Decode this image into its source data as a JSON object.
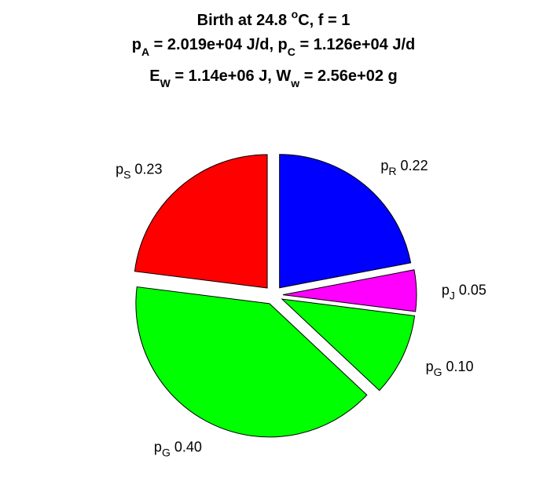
{
  "chart_data": {
    "type": "pie",
    "title": {
      "line1": {
        "t1": "Birth at 24.8 ",
        "sup": "o",
        "t2": "C, f = 1"
      },
      "line2": {
        "a1": "p",
        "a_sub": "A",
        "a2": " = 2.019e+04 J/d, p",
        "c_sub": "C",
        "c2": " = 1.126e+04 J/d"
      },
      "line3": {
        "e1": "E",
        "e_sub": "W",
        "e2": " = 1.14e+06 J, W",
        "w_sub": "w",
        "w2": " = 2.56e+02 g"
      }
    },
    "slices": [
      {
        "base": "p",
        "sub": "R",
        "value": "0.22",
        "color": "#0000ff"
      },
      {
        "base": "p",
        "sub": "J",
        "value": "0.05",
        "color": "#ff00ff"
      },
      {
        "base": "p",
        "sub": "G",
        "value": "0.10",
        "color": "#00ff00"
      },
      {
        "base": "p",
        "sub": "G",
        "value": "0.40",
        "color": "#00ff00"
      },
      {
        "base": "p",
        "sub": "S",
        "value": "0.23",
        "color": "#ff0000"
      }
    ],
    "exploded": true,
    "legend": "none"
  }
}
